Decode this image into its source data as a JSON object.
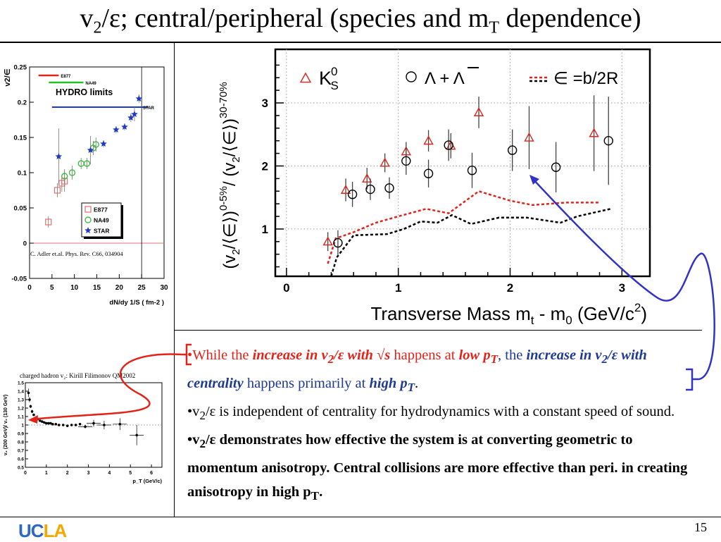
{
  "slide": {
    "title_parts": [
      "v",
      "2",
      "/ε; central/peripheral (species and m",
      "T",
      " dependence)"
    ],
    "page_number": "15",
    "logo": {
      "u": "UC",
      "c": "LA"
    }
  },
  "bullets": {
    "b1": {
      "dot": "•",
      "p1": "While the ",
      "p2": "increase in v",
      "p2s": "2",
      "p3": "/ε with √s",
      "p4": " happens at ",
      "p5": "low p",
      "p5s": "T",
      "p6": ", the ",
      "p7": "increase in v",
      "p7s": "2",
      "p8": "/ε with centrality",
      "p9": " happens primarily at ",
      "p10": "high p",
      "p10s": "T",
      "p11": "."
    },
    "b2": {
      "p1": "•v",
      "p1s": "2",
      "p2": "/ε is independent of centrality for hydrodynamics with a constant speed of sound."
    },
    "b3": {
      "p1": "•v",
      "p1s": "2",
      "p2": "/ε demonstrates how effective the system is at converting geometric to momentum anisotropy. Central collisions are more effective than peri. in creating anisotropy in high p",
      "p2s": "T",
      "p3": "."
    }
  },
  "colors": {
    "red": "#e2231a",
    "blue": "#1f3a93",
    "arrow_blue": "#3232c8",
    "ucla_blue": "#2d68c4",
    "ucla_gold": "#f2a900"
  },
  "chart_data": [
    {
      "id": "hydro-limits",
      "type": "scatter",
      "ylabel": "v2/∈",
      "xlabel": "dN/dy 1/S ( fm-2 )",
      "xlim": [
        0,
        30
      ],
      "ylim": [
        -0.05,
        0.25
      ],
      "x_ticks": [
        "0",
        "5",
        "10",
        "15",
        "20",
        "25",
        "30"
      ],
      "y_ticks": [
        "-0.05",
        "0",
        "0.05",
        "0.1",
        "0.15",
        "0.2",
        "0.25"
      ],
      "annotation": "HYDRO  limits",
      "star_label": "STAR",
      "citation": "C. Adler et.al. Phys. Rev. C66, 034904",
      "top_legend": [
        {
          "name": "E877",
          "color": "#e2231a"
        },
        {
          "name": "NA49",
          "color": "#22c022"
        },
        {
          "name": "STAR",
          "color": "#1f3abf"
        }
      ],
      "hydro_limits": [
        {
          "name": "E877",
          "y": 0.238,
          "x": [
            2,
            6.5
          ],
          "color": "#e2231a"
        },
        {
          "name": "NA49",
          "y": 0.228,
          "x": [
            4.3,
            12
          ],
          "color": "#22c022"
        },
        {
          "name": "STAR",
          "y": 0.193,
          "x": [
            5,
            26.5
          ],
          "color": "#1f3abf"
        }
      ],
      "series": [
        {
          "name": "E877",
          "marker": "square",
          "color": "#e07070",
          "points": [
            [
              4.2,
              0.03,
              0.008
            ],
            [
              6.2,
              0.075,
              0.01
            ],
            [
              7.2,
              0.085,
              0.012
            ],
            [
              7.8,
              0.088,
              0.015
            ]
          ]
        },
        {
          "name": "NA49",
          "marker": "circle",
          "color": "#44bb44",
          "points": [
            [
              7.8,
              0.095,
              0.01
            ],
            [
              9.5,
              0.1,
              0.01
            ],
            [
              11.5,
              0.113,
              0.008
            ],
            [
              12.8,
              0.113,
              0.008
            ],
            [
              14.2,
              0.135,
              0.01
            ],
            [
              14.8,
              0.14,
              0.01
            ]
          ]
        },
        {
          "name": "STAR",
          "marker": "star",
          "color": "#1f3abf",
          "points": [
            [
              6.5,
              0.123,
              0.04
            ],
            [
              13.6,
              0.132,
              0.02
            ],
            [
              16.5,
              0.141,
              0.005
            ],
            [
              19.3,
              0.161,
              0.005
            ],
            [
              21.2,
              0.165,
              0.005
            ],
            [
              22.6,
              0.178,
              0.006
            ],
            [
              23.4,
              0.183,
              0.01
            ],
            [
              24.4,
              0.205,
              0.006
            ]
          ]
        }
      ],
      "vline_x": 25
    },
    {
      "id": "centrality-ratio",
      "type": "scatter",
      "xlabel": "Transverse Mass m_t - m_0 (GeV/c²)",
      "ylabel": "(v2/⟨∈⟩)0-5% / (v2/⟨∈⟩)30-70%",
      "xlim": [
        -0.1,
        3.25
      ],
      "ylim": [
        0.25,
        3.85
      ],
      "x_ticks": [
        "0",
        "1",
        "2",
        "3"
      ],
      "y_ticks": [
        "1",
        "2",
        "3"
      ],
      "legend": [
        {
          "name": "K⁰S",
          "marker": "triangle",
          "color": "#e2231a"
        },
        {
          "name": "Λ + Λ̄",
          "marker": "circle",
          "color": "#000000"
        },
        {
          "name": "∈ =b/2R",
          "marker": "dash",
          "color": "#e2231a"
        }
      ],
      "series": [
        {
          "name": "K0S",
          "marker": "triangle",
          "color": "#e2231a",
          "points": [
            [
              0.37,
              0.8,
              0.15
            ],
            [
              0.53,
              1.62,
              0.18
            ],
            [
              0.72,
              1.8,
              0.17
            ],
            [
              0.88,
              2.05,
              0.15
            ],
            [
              1.07,
              2.23,
              0.15
            ],
            [
              1.27,
              2.4,
              0.17
            ],
            [
              1.47,
              2.32,
              0.2
            ],
            [
              1.72,
              2.85,
              0.25
            ],
            [
              2.17,
              2.45,
              0.5
            ],
            [
              2.75,
              2.52,
              0.6
            ]
          ]
        },
        {
          "name": "Lambda+AntiLambda",
          "marker": "circle",
          "color": "#000000",
          "points": [
            [
              0.46,
              0.78,
              0.2
            ],
            [
              0.59,
              1.55,
              0.2
            ],
            [
              0.75,
              1.63,
              0.17
            ],
            [
              0.92,
              1.65,
              0.17
            ],
            [
              1.07,
              2.08,
              0.22
            ],
            [
              1.27,
              1.88,
              0.22
            ],
            [
              1.45,
              2.33,
              0.25
            ],
            [
              1.66,
              1.93,
              0.28
            ],
            [
              2.02,
              2.25,
              0.33
            ],
            [
              2.41,
              1.98,
              0.4
            ],
            [
              2.88,
              2.4,
              0.7
            ]
          ]
        }
      ],
      "eps_bands": [
        {
          "name": "red",
          "color": "#e2231a",
          "points": [
            [
              0.37,
              0.45
            ],
            [
              0.44,
              0.85
            ],
            [
              0.6,
              0.95
            ],
            [
              0.8,
              1.1
            ],
            [
              1.0,
              1.2
            ],
            [
              1.25,
              1.32
            ],
            [
              1.45,
              1.25
            ],
            [
              1.72,
              1.6
            ],
            [
              2.0,
              1.45
            ],
            [
              2.2,
              1.38
            ],
            [
              2.5,
              1.42
            ],
            [
              2.8,
              1.42
            ]
          ]
        },
        {
          "name": "black",
          "color": "#000000",
          "points": [
            [
              0.4,
              0.25
            ],
            [
              0.45,
              0.55
            ],
            [
              0.6,
              0.9
            ],
            [
              0.9,
              0.92
            ],
            [
              1.05,
              1.0
            ],
            [
              1.2,
              1.12
            ],
            [
              1.35,
              1.1
            ],
            [
              1.48,
              1.22
            ],
            [
              1.65,
              1.08
            ],
            [
              1.9,
              1.18
            ],
            [
              2.15,
              1.18
            ],
            [
              2.45,
              1.1
            ],
            [
              2.6,
              1.2
            ],
            [
              2.9,
              1.32
            ]
          ]
        }
      ]
    },
    {
      "id": "filimonov-ratio",
      "type": "scatter",
      "title": "charged hadron v₂: Kirill Filimonov QM2002",
      "xlabel": "p_T (GeV/c)",
      "ylabel": "v₂ (200 GeV)/ v₂ (130 GeV)",
      "xlim": [
        0,
        6.5
      ],
      "ylim": [
        0.5,
        1.5
      ],
      "x_ticks": [
        "0",
        "1",
        "2",
        "3",
        "4",
        "5",
        "6"
      ],
      "y_ticks": [
        "0.5",
        "0.6",
        "0.7",
        "0.8",
        "0.9",
        "1",
        "1.1",
        "1.2",
        "1.3",
        "1.4",
        "1.5"
      ],
      "series": [
        {
          "name": "ratio",
          "marker": "circle",
          "color": "#000000",
          "points": [
            [
              0.15,
              1.38,
              0.05
            ],
            [
              0.2,
              1.3,
              0.03
            ],
            [
              0.25,
              1.22,
              0.02
            ],
            [
              0.32,
              1.16,
              0.02
            ],
            [
              0.4,
              1.12,
              0.01
            ],
            [
              0.5,
              1.08,
              0.01
            ],
            [
              0.6,
              1.07,
              0.01
            ],
            [
              0.7,
              1.05,
              0.01
            ],
            [
              0.8,
              1.04,
              0.01
            ],
            [
              0.9,
              1.03,
              0.01
            ],
            [
              1.0,
              1.02,
              0.01
            ],
            [
              1.1,
              1.02,
              0.01
            ],
            [
              1.2,
              1.02,
              0.01
            ],
            [
              1.3,
              1.01,
              0.01
            ],
            [
              1.45,
              1.01,
              0.01
            ],
            [
              1.6,
              1.0,
              0.01
            ],
            [
              1.8,
              1.0,
              0.01
            ],
            [
              2.0,
              0.99,
              0.01
            ],
            [
              2.2,
              1.0,
              0.01
            ],
            [
              2.4,
              1.0,
              0.01
            ],
            [
              2.6,
              1.01,
              0.01
            ],
            [
              2.85,
              0.98,
              0.02
            ],
            [
              3.25,
              1.02,
              0.04
            ],
            [
              3.75,
              1.0,
              0.05
            ],
            [
              4.5,
              1.01,
              0.07
            ],
            [
              5.3,
              0.88,
              0.12
            ]
          ]
        }
      ],
      "ref_line_y": 1.0
    }
  ]
}
